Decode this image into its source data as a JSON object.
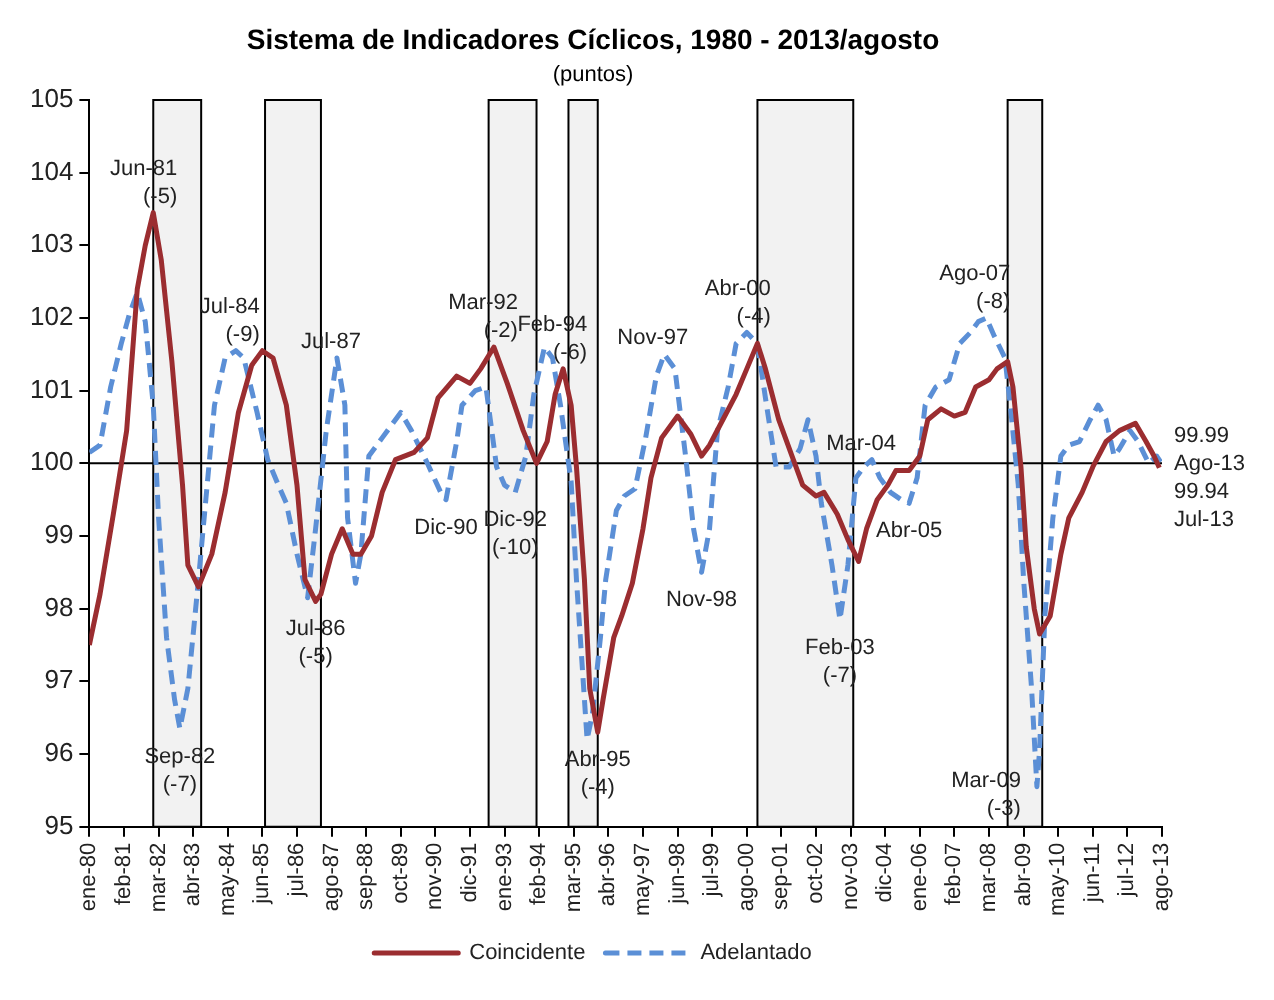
{
  "chart_data": {
    "type": "line",
    "title": "Sistema de Indicadores Cíclicos, 1980 - 2013/agosto",
    "subtitle": "(puntos)",
    "xlim": [
      "1980-01",
      "2013-08"
    ],
    "xticks": [
      {
        "value": "1980-01",
        "label": "ene-80"
      },
      {
        "value": "1981-02",
        "label": "feb-81"
      },
      {
        "value": "1982-03",
        "label": "mar-82"
      },
      {
        "value": "1983-04",
        "label": "abr-83"
      },
      {
        "value": "1984-05",
        "label": "may-84"
      },
      {
        "value": "1985-06",
        "label": "jun-85"
      },
      {
        "value": "1986-07",
        "label": "jul-86"
      },
      {
        "value": "1987-08",
        "label": "ago-87"
      },
      {
        "value": "1988-09",
        "label": "sep-88"
      },
      {
        "value": "1989-10",
        "label": "oct-89"
      },
      {
        "value": "1990-11",
        "label": "nov-90"
      },
      {
        "value": "1991-12",
        "label": "dic-91"
      },
      {
        "value": "1993-01",
        "label": "ene-93"
      },
      {
        "value": "1994-02",
        "label": "feb-94"
      },
      {
        "value": "1995-03",
        "label": "mar-95"
      },
      {
        "value": "1996-04",
        "label": "abr-96"
      },
      {
        "value": "1997-05",
        "label": "may-97"
      },
      {
        "value": "1998-06",
        "label": "jun-98"
      },
      {
        "value": "1999-07",
        "label": "jul-99"
      },
      {
        "value": "2000-08",
        "label": "ago-00"
      },
      {
        "value": "2001-09",
        "label": "sep-01"
      },
      {
        "value": "2002-10",
        "label": "oct-02"
      },
      {
        "value": "2003-11",
        "label": "nov-03"
      },
      {
        "value": "2004-12",
        "label": "dic-04"
      },
      {
        "value": "2006-01",
        "label": "ene-06"
      },
      {
        "value": "2007-02",
        "label": "feb-07"
      },
      {
        "value": "2008-03",
        "label": "mar-08"
      },
      {
        "value": "2009-04",
        "label": "abr-09"
      },
      {
        "value": "2010-05",
        "label": "may-10"
      },
      {
        "value": "2011-06",
        "label": "jun-11"
      },
      {
        "value": "2012-07",
        "label": "jul-12"
      },
      {
        "value": "2013-08",
        "label": "ago-13"
      }
    ],
    "ylim": [
      95,
      105
    ],
    "yticks": [
      95,
      96,
      97,
      98,
      99,
      100,
      101,
      102,
      103,
      104,
      105
    ],
    "grid": false,
    "legend": "bottom",
    "marker": "none",
    "series": [
      {
        "name": "Coincidente",
        "color": "#9b2d30",
        "line_style": "solid",
        "x": [
          "1980-01",
          "1980-05",
          "1980-10",
          "1981-03",
          "1981-07",
          "1981-10",
          "1982-01",
          "1982-04",
          "1982-08",
          "1982-12",
          "1983-02",
          "1983-06",
          "1983-11",
          "1984-04",
          "1984-09",
          "1985-02",
          "1985-06",
          "1985-10",
          "1986-03",
          "1986-07",
          "1986-10",
          "1987-02",
          "1987-04",
          "1987-08",
          "1987-12",
          "1988-04",
          "1988-07",
          "1988-11",
          "1989-03",
          "1989-08",
          "1990-03",
          "1990-08",
          "1990-12",
          "1991-07",
          "1991-12",
          "1992-04",
          "1992-09",
          "1993-02",
          "1993-08",
          "1994-01",
          "1994-05",
          "1994-08",
          "1994-11",
          "1995-02",
          "1995-04",
          "1995-07",
          "1995-09",
          "1995-12",
          "1996-02",
          "1996-06",
          "1996-09",
          "1997-01",
          "1997-05",
          "1997-08",
          "1997-12",
          "1998-06",
          "1998-11",
          "1999-03",
          "1999-06",
          "1999-11",
          "2000-04",
          "2000-08",
          "2000-12",
          "2001-03",
          "2001-08",
          "2002-01",
          "2002-05",
          "2002-10",
          "2003-01",
          "2003-06",
          "2003-10",
          "2004-02",
          "2004-05",
          "2004-09",
          "2005-01",
          "2005-04",
          "2005-09",
          "2006-01",
          "2006-04",
          "2006-09",
          "2007-02",
          "2007-06",
          "2007-10",
          "2008-03",
          "2008-06",
          "2008-10",
          "2008-12",
          "2009-03",
          "2009-05",
          "2009-08",
          "2009-10",
          "2010-02",
          "2010-06",
          "2010-09",
          "2011-02",
          "2011-06",
          "2011-11",
          "2012-04",
          "2012-10",
          "2013-02",
          "2013-05",
          "2013-07"
        ],
        "values": [
          97.5,
          98.2,
          99.3,
          100.45,
          102.4,
          103.0,
          103.45,
          102.8,
          101.4,
          99.7,
          98.6,
          98.3,
          98.75,
          99.6,
          100.7,
          101.35,
          101.55,
          101.45,
          100.8,
          99.7,
          98.4,
          98.1,
          98.2,
          98.75,
          99.1,
          98.75,
          98.75,
          99.0,
          99.6,
          100.05,
          100.15,
          100.35,
          100.9,
          101.2,
          101.1,
          101.3,
          101.6,
          101.1,
          100.45,
          100.0,
          100.3,
          100.95,
          101.3,
          100.8,
          99.95,
          98.4,
          96.9,
          96.3,
          96.75,
          97.6,
          97.9,
          98.35,
          99.1,
          99.8,
          100.35,
          100.65,
          100.4,
          100.1,
          100.25,
          100.6,
          100.95,
          101.3,
          101.65,
          101.3,
          100.6,
          100.1,
          99.7,
          99.55,
          99.6,
          99.3,
          98.95,
          98.65,
          99.1,
          99.5,
          99.7,
          99.9,
          99.9,
          100.1,
          100.6,
          100.75,
          100.65,
          100.7,
          101.05,
          101.15,
          101.3,
          101.4,
          101.05,
          99.95,
          98.85,
          98.0,
          97.65,
          97.9,
          98.75,
          99.25,
          99.6,
          99.95,
          100.3,
          100.45,
          100.55,
          100.3,
          100.1,
          99.94
        ]
      },
      {
        "name": "Adelantado",
        "color": "#5b8fd6",
        "line_style": "dashed",
        "x": [
          "1980-01",
          "1980-05",
          "1980-09",
          "1981-01",
          "1981-04",
          "1981-07",
          "1981-10",
          "1982-01",
          "1982-03",
          "1982-06",
          "1982-09",
          "1982-11",
          "1983-02",
          "1983-06",
          "1983-09",
          "1983-12",
          "1984-04",
          "1984-08",
          "1984-11",
          "1985-04",
          "1985-08",
          "1985-12",
          "1986-03",
          "1986-07",
          "1986-11",
          "1987-02",
          "1987-06",
          "1987-10",
          "1988-01",
          "1988-02",
          "1988-05",
          "1988-07",
          "1988-10",
          "1989-03",
          "1989-06",
          "1989-10",
          "1990-02",
          "1990-08",
          "1991-01",
          "1991-03",
          "1991-07",
          "1991-09",
          "1992-02",
          "1992-06",
          "1992-10",
          "1993-01",
          "1993-05",
          "1993-09",
          "1993-12",
          "1994-04",
          "1994-07",
          "1994-10",
          "1995-02",
          "1995-04",
          "1995-07",
          "1995-08",
          "1995-10",
          "1996-01",
          "1996-03",
          "1996-07",
          "1996-10",
          "1997-02",
          "1997-06",
          "1997-10",
          "1998-01",
          "1998-05",
          "1998-09",
          "1998-12",
          "1999-03",
          "1999-06",
          "1999-09",
          "2000-01",
          "2000-04",
          "2000-08",
          "2000-12",
          "2001-03",
          "2001-07",
          "2001-12",
          "2002-04",
          "2002-07",
          "2002-10",
          "2002-12",
          "2003-04",
          "2003-07",
          "2003-10",
          "2004-01",
          "2004-04",
          "2004-07",
          "2004-10",
          "2005-02",
          "2005-06",
          "2005-09",
          "2005-12",
          "2006-03",
          "2006-07",
          "2006-12",
          "2007-04",
          "2007-08",
          "2007-11",
          "2008-02",
          "2008-05",
          "2008-09",
          "2008-11",
          "2009-02",
          "2009-04",
          "2009-07",
          "2009-09",
          "2009-10",
          "2009-12",
          "2010-03",
          "2010-06",
          "2010-09",
          "2011-01",
          "2011-05",
          "2011-08",
          "2011-11",
          "2012-02",
          "2012-04",
          "2012-08",
          "2012-11",
          "2013-03",
          "2013-06",
          "2013-08"
        ],
        "values": [
          100.15,
          100.25,
          101.05,
          101.65,
          102.05,
          102.35,
          101.95,
          100.8,
          99.25,
          97.6,
          96.75,
          96.35,
          96.9,
          98.4,
          99.6,
          100.8,
          101.45,
          101.55,
          101.45,
          100.7,
          100.05,
          99.7,
          99.45,
          98.75,
          98.15,
          99.1,
          100.45,
          101.45,
          100.8,
          99.25,
          98.35,
          98.75,
          100.1,
          100.35,
          100.5,
          100.7,
          100.45,
          100.0,
          99.6,
          99.5,
          100.3,
          100.8,
          101.0,
          101.05,
          99.95,
          99.7,
          99.6,
          100.1,
          100.95,
          101.6,
          101.45,
          100.8,
          99.75,
          98.4,
          96.75,
          96.2,
          96.55,
          97.6,
          98.4,
          99.35,
          99.55,
          99.65,
          100.35,
          101.2,
          101.5,
          101.3,
          100.1,
          99.1,
          98.5,
          99.1,
          100.45,
          101.05,
          101.65,
          101.8,
          101.65,
          100.9,
          99.95,
          99.95,
          100.2,
          100.6,
          100.1,
          99.45,
          98.6,
          97.85,
          98.6,
          99.8,
          99.95,
          100.05,
          99.8,
          99.6,
          99.5,
          99.45,
          99.8,
          100.8,
          101.05,
          101.15,
          101.65,
          101.8,
          101.95,
          102.0,
          101.75,
          101.45,
          100.8,
          99.7,
          98.4,
          96.9,
          95.55,
          96.05,
          97.9,
          99.25,
          100.1,
          100.25,
          100.3,
          100.6,
          100.8,
          100.6,
          100.1,
          100.2,
          100.45,
          100.3,
          100.0,
          100.1,
          99.99
        ]
      }
    ],
    "bands": [
      {
        "axis": "x",
        "from": "1982-01",
        "to": "1983-07",
        "color": "#f2f2f2"
      },
      {
        "axis": "x",
        "from": "1985-07",
        "to": "1987-04",
        "color": "#f2f2f2"
      },
      {
        "axis": "x",
        "from": "1992-07",
        "to": "1994-01",
        "color": "#f2f2f2"
      },
      {
        "axis": "x",
        "from": "1995-01",
        "to": "1995-12",
        "color": "#f2f2f2"
      },
      {
        "axis": "x",
        "from": "2000-12",
        "to": "2003-12",
        "color": "#f2f2f2"
      },
      {
        "axis": "x",
        "from": "2008-10",
        "to": "2009-11",
        "color": "#f2f2f2"
      }
    ],
    "ref_lines": [
      {
        "axis": "y",
        "value": 100,
        "color": "#000000"
      }
    ],
    "annotations": [
      {
        "text": "Jun-81\n(-5)",
        "x": "1982-01",
        "y": 103.45
      },
      {
        "text": "Sep-82\n(-7)",
        "x": "1982-11",
        "y": 96.35
      },
      {
        "text": "Jul-84\n(-9)",
        "x": "1984-08",
        "y": 101.55
      },
      {
        "text": "Jul-86\n(-5)",
        "x": "1987-02",
        "y": 98.1
      },
      {
        "text": "Jul-87",
        "x": "1987-10",
        "y": 101.45
      },
      {
        "text": "Dic-90",
        "x": "1991-03",
        "y": 99.5
      },
      {
        "text": "Mar-92\n(-2)",
        "x": "1992-09",
        "y": 101.6
      },
      {
        "text": "Dic-92\n(-10)",
        "x": "1993-05",
        "y": 99.6
      },
      {
        "text": "Feb-94\n(-6)",
        "x": "1994-11",
        "y": 101.3
      },
      {
        "text": "Abr-95\n(-4)",
        "x": "1995-12",
        "y": 96.3
      },
      {
        "text": "Nov-97",
        "x": "1998-01",
        "y": 101.5
      },
      {
        "text": "Nov-98",
        "x": "1999-03",
        "y": 98.5
      },
      {
        "text": "Abr-00\n(-4)",
        "x": "2000-08",
        "y": 101.8
      },
      {
        "text": "Feb-03\n(-7)",
        "x": "2003-07",
        "y": 97.85
      },
      {
        "text": "Mar-04",
        "x": "2004-07",
        "y": 100.05
      },
      {
        "text": "Abr-05",
        "x": "2005-09",
        "y": 99.45
      },
      {
        "text": "Ago-07\n(-8)",
        "x": "2008-02",
        "y": 102.0
      },
      {
        "text": "Mar-09\n(-3)",
        "x": "2009-09",
        "y": 95.55
      },
      {
        "text": "99.99\nAgo-13",
        "x": "2013-08",
        "y": 99.99
      },
      {
        "text": "99.94\nJul-13",
        "x": "2013-07",
        "y": 99.94
      }
    ]
  }
}
